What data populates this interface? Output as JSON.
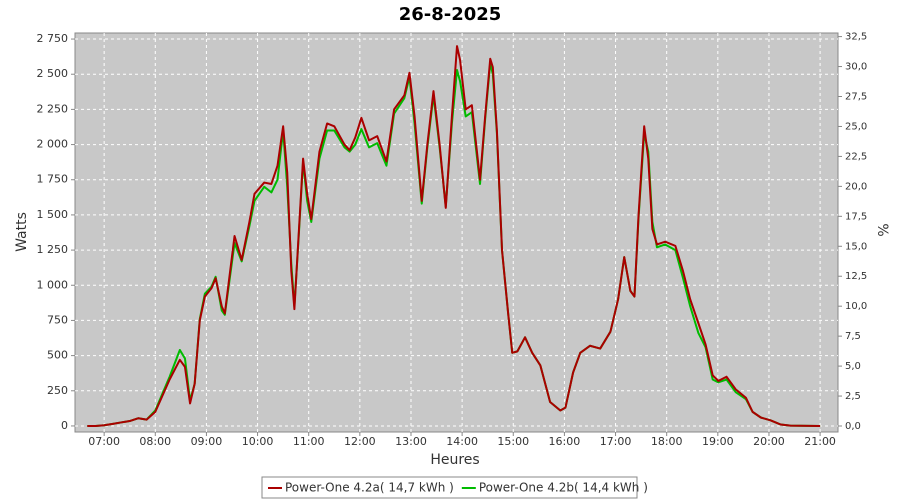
{
  "chart_data": {
    "type": "line",
    "title": "26-8-2025",
    "xlabel": "Heures",
    "ylabel": "Watts",
    "y2label": "%",
    "grid": true,
    "legend": "bottom",
    "background": "#c8c8c8",
    "x": [
      6.67,
      6.83,
      7.0,
      7.17,
      7.33,
      7.5,
      7.67,
      7.83,
      8.0,
      8.28,
      8.48,
      8.58,
      8.68,
      8.77,
      8.87,
      8.97,
      9.1,
      9.18,
      9.3,
      9.36,
      9.55,
      9.69,
      9.84,
      9.94,
      10.13,
      10.27,
      10.39,
      10.5,
      10.58,
      10.66,
      10.72,
      10.81,
      10.89,
      10.97,
      11.05,
      11.21,
      11.36,
      11.5,
      11.7,
      11.8,
      11.91,
      12.03,
      12.18,
      12.34,
      12.52,
      12.67,
      12.87,
      12.97,
      13.07,
      13.21,
      13.32,
      13.44,
      13.56,
      13.68,
      13.8,
      13.9,
      13.96,
      14.07,
      14.19,
      14.35,
      14.45,
      14.55,
      14.6,
      14.68,
      14.78,
      14.9,
      14.98,
      15.08,
      15.23,
      15.37,
      15.53,
      15.72,
      15.92,
      16.02,
      16.17,
      16.31,
      16.5,
      16.7,
      16.9,
      17.05,
      17.17,
      17.29,
      17.37,
      17.45,
      17.56,
      17.64,
      17.72,
      17.81,
      17.97,
      18.17,
      18.32,
      18.46,
      18.62,
      18.76,
      18.9,
      19.01,
      19.17,
      19.35,
      19.55,
      19.68,
      19.84,
      20.03,
      20.23,
      20.42,
      21.0
    ],
    "series": [
      {
        "name": "Power-One 4.2b( 14,4 kWh )",
        "color": "#00bb00",
        "values": [
          0,
          0,
          5,
          15,
          25,
          35,
          55,
          45,
          110,
          350,
          540,
          480,
          180,
          300,
          760,
          940,
          990,
          1060,
          820,
          790,
          1300,
          1170,
          1420,
          1600,
          1700,
          1660,
          1750,
          2100,
          1700,
          1150,
          850,
          1380,
          1880,
          1600,
          1450,
          1900,
          2100,
          2100,
          1980,
          1950,
          2000,
          2110,
          1980,
          2010,
          1850,
          2220,
          2330,
          2480,
          2150,
          1580,
          1980,
          2350,
          1980,
          1560,
          2150,
          2530,
          2450,
          2200,
          2230,
          1720,
          2180,
          2580,
          2500,
          2080,
          1250,
          800,
          520,
          530,
          630,
          520,
          430,
          170,
          110,
          130,
          380,
          520,
          570,
          550,
          670,
          900,
          1200,
          960,
          920,
          1480,
          2080,
          1950,
          1450,
          1270,
          1290,
          1250,
          1050,
          850,
          660,
          560,
          330,
          310,
          330,
          240,
          190,
          100,
          60,
          40,
          10,
          2,
          0
        ]
      },
      {
        "name": "Power-One 4.2a( 14,7 kWh )",
        "color": "#aa0000",
        "values": [
          0,
          0,
          5,
          15,
          25,
          35,
          55,
          45,
          100,
          330,
          470,
          420,
          160,
          300,
          750,
          920,
          980,
          1050,
          850,
          800,
          1350,
          1180,
          1450,
          1650,
          1730,
          1720,
          1850,
          2130,
          1800,
          1100,
          830,
          1400,
          1900,
          1650,
          1470,
          1950,
          2150,
          2130,
          2000,
          1960,
          2050,
          2190,
          2030,
          2060,
          1880,
          2250,
          2350,
          2510,
          2200,
          1600,
          2000,
          2380,
          2000,
          1550,
          2200,
          2700,
          2600,
          2250,
          2280,
          1750,
          2200,
          2610,
          2550,
          2100,
          1250,
          800,
          520,
          530,
          630,
          520,
          430,
          170,
          110,
          130,
          380,
          520,
          570,
          550,
          670,
          900,
          1200,
          960,
          920,
          1500,
          2130,
          1900,
          1400,
          1290,
          1310,
          1280,
          1100,
          900,
          730,
          580,
          360,
          320,
          350,
          260,
          200,
          100,
          60,
          40,
          10,
          2,
          0
        ]
      }
    ],
    "legend_order": [
      1,
      0
    ],
    "xlim": [
      6.43,
      21.35
    ],
    "xticks": [
      {
        "value": 7,
        "label": "07:00"
      },
      {
        "value": 8,
        "label": "08:00"
      },
      {
        "value": 9,
        "label": "09:00"
      },
      {
        "value": 10,
        "label": "10:00"
      },
      {
        "value": 11,
        "label": "11:00"
      },
      {
        "value": 12,
        "label": "12:00"
      },
      {
        "value": 13,
        "label": "13:00"
      },
      {
        "value": 14,
        "label": "14:00"
      },
      {
        "value": 15,
        "label": "15:00"
      },
      {
        "value": 16,
        "label": "16:00"
      },
      {
        "value": 17,
        "label": "17:00"
      },
      {
        "value": 18,
        "label": "18:00"
      },
      {
        "value": 19,
        "label": "19:00"
      },
      {
        "value": 20,
        "label": "20:00"
      },
      {
        "value": 21,
        "label": "21:00"
      }
    ],
    "ylim": [
      -43,
      2793
    ],
    "yticks": [
      0,
      250,
      500,
      750,
      {
        "value": 1000,
        "label": "1 000"
      },
      {
        "value": 1250,
        "label": "1 250"
      },
      {
        "value": 1500,
        "label": "1 500"
      },
      {
        "value": 1750,
        "label": "1 750"
      },
      {
        "value": 2000,
        "label": "2 000"
      },
      {
        "value": 2250,
        "label": "2 250"
      },
      {
        "value": 2500,
        "label": "2 500"
      },
      {
        "value": 2750,
        "label": "2 750"
      }
    ],
    "y2lim": [
      -0.5,
      32.8
    ],
    "y2ticks": [
      {
        "value": 0,
        "label": "0,0"
      },
      {
        "value": 2.5,
        "label": "2,5"
      },
      {
        "value": 5,
        "label": "5,0"
      },
      {
        "value": 7.5,
        "label": "7,5"
      },
      {
        "value": 10,
        "label": "10,0"
      },
      {
        "value": 12.5,
        "label": "12,5"
      },
      {
        "value": 15,
        "label": "15,0"
      },
      {
        "value": 17.5,
        "label": "17,5"
      },
      {
        "value": 20,
        "label": "20,0"
      },
      {
        "value": 22.5,
        "label": "22,5"
      },
      {
        "value": 25,
        "label": "25,0"
      },
      {
        "value": 27.5,
        "label": "27,5"
      },
      {
        "value": 30,
        "label": "30,0"
      },
      {
        "value": 32.5,
        "label": "32,5"
      }
    ]
  }
}
